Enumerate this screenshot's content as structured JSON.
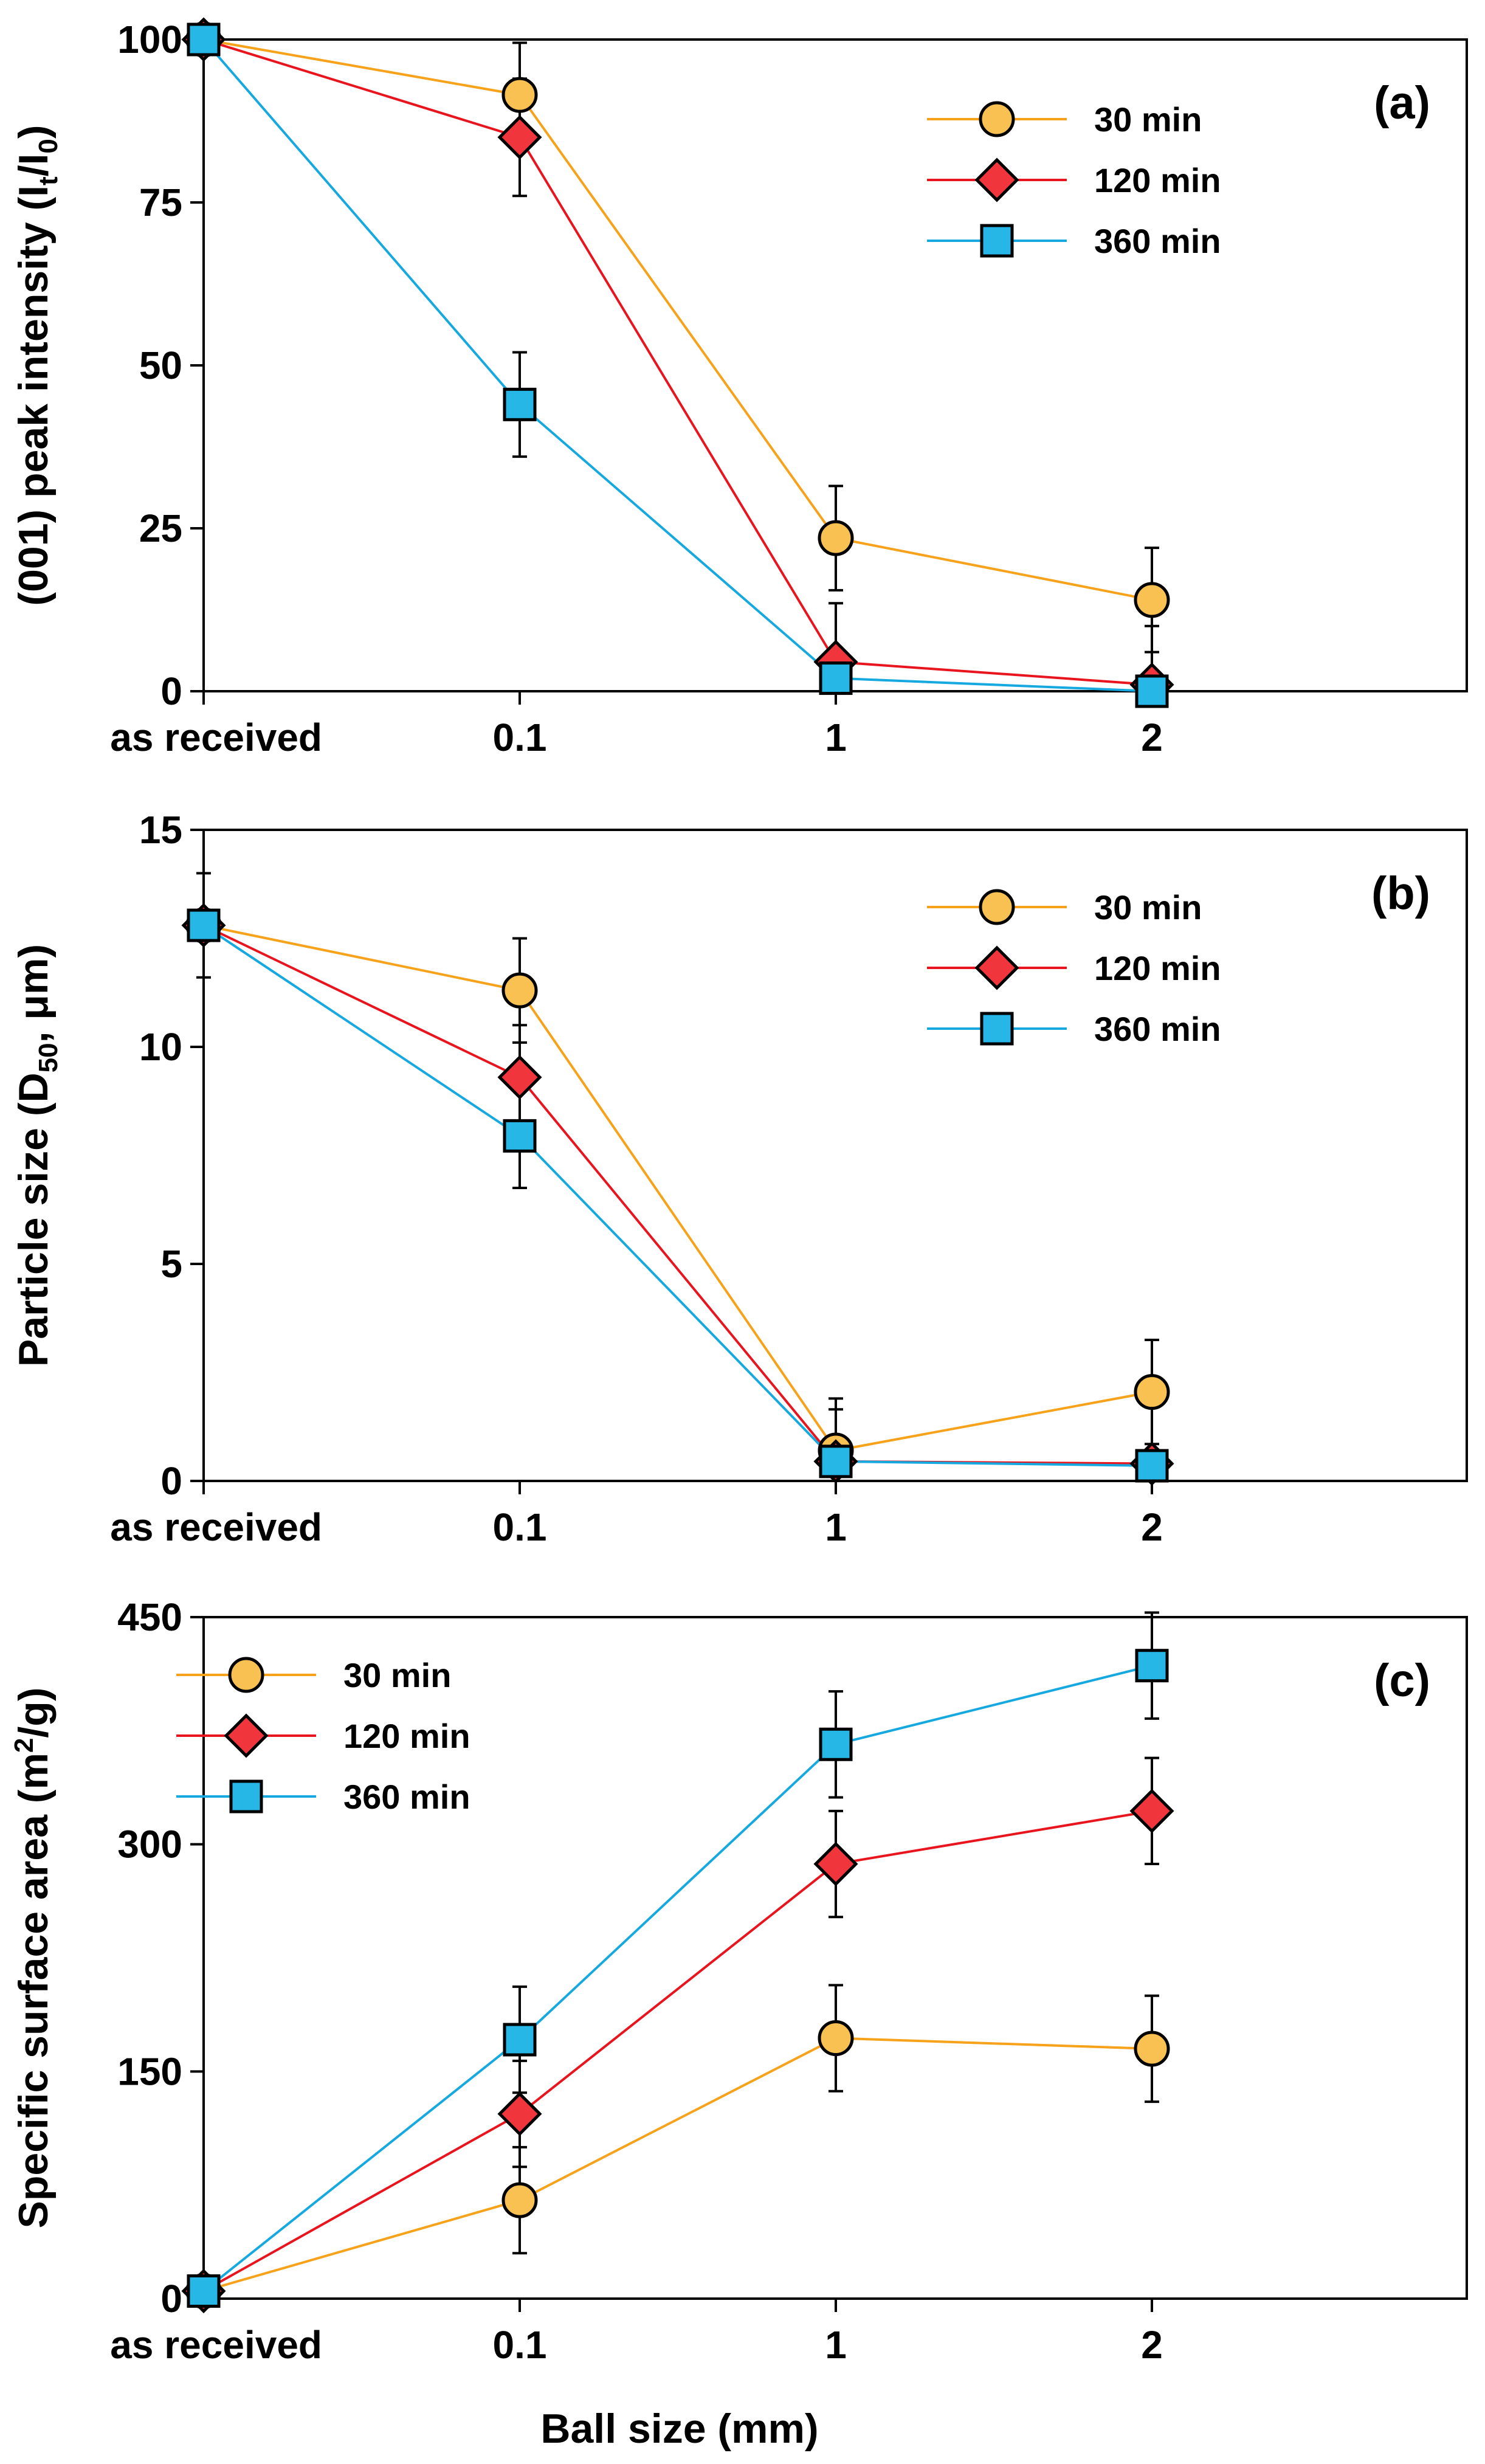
{
  "figure": {
    "xlabel": "Ball size (mm)",
    "colors": {
      "30 min": "#F9C152",
      "120 min": "#F0363C",
      "360 min": "#26B7E6"
    },
    "line_colors": {
      "30 min": "#F7A21B",
      "120 min": "#E8151E",
      "360 min": "#16A9DF"
    }
  },
  "chart_data": [
    {
      "type": "line",
      "panel_label": "(a)",
      "ylabel": "(001) peak intensity (I",
      "ylabel_sub1": "t",
      "ylabel_mid": "/I",
      "ylabel_sub2": "0",
      "ylabel_end": ")",
      "categories": [
        "as received",
        "0.1",
        "1",
        "2"
      ],
      "ylim": [
        0,
        100
      ],
      "yticks": [
        "0",
        "25",
        "50",
        "75",
        "100"
      ],
      "yticks_values": [
        0,
        25,
        50,
        75,
        100
      ],
      "legend_position": "top-right",
      "series": [
        {
          "name": "30 min",
          "marker": "circle",
          "values": [
            100,
            91.5,
            23.5,
            14
          ],
          "err": [
            0,
            8,
            8,
            8
          ]
        },
        {
          "name": "120 min",
          "marker": "diamond",
          "values": [
            100,
            85,
            4.5,
            1
          ],
          "err": [
            0,
            9,
            9,
            9
          ]
        },
        {
          "name": "360 min",
          "marker": "square",
          "values": [
            100,
            44,
            2,
            0
          ],
          "err": [
            0,
            8,
            0,
            0
          ]
        }
      ]
    },
    {
      "type": "line",
      "panel_label": "(b)",
      "ylabel": "Particle size (D",
      "ylabel_sub1": "50",
      "ylabel_mid": ", μm",
      "ylabel_sub2": "",
      "ylabel_end": ")",
      "categories": [
        "as received",
        "0.1",
        "1",
        "2"
      ],
      "ylim": [
        0,
        15
      ],
      "yticks": [
        "0",
        "5",
        "10",
        "15"
      ],
      "yticks_values": [
        0,
        5,
        10,
        15
      ],
      "legend_position": "top-right",
      "series": [
        {
          "name": "30 min",
          "marker": "circle",
          "values": [
            12.8,
            11.3,
            0.7,
            2.05
          ],
          "err": [
            1.2,
            1.2,
            1.2,
            1.2
          ]
        },
        {
          "name": "120 min",
          "marker": "diamond",
          "values": [
            12.8,
            9.3,
            0.45,
            0.4
          ],
          "err": [
            0,
            1.2,
            1.2,
            0
          ]
        },
        {
          "name": "360 min",
          "marker": "square",
          "values": [
            12.8,
            7.95,
            0.45,
            0.35
          ],
          "err": [
            0,
            1.2,
            0,
            0
          ]
        }
      ]
    },
    {
      "type": "line",
      "panel_label": "(c)",
      "ylabel": "Specific surface area (m",
      "ylabel_sup": "2",
      "ylabel_end": "/g)",
      "categories": [
        "as received",
        "0.1",
        "1",
        "2"
      ],
      "ylim": [
        0,
        450
      ],
      "yticks": [
        "0",
        "150",
        "300",
        "450"
      ],
      "yticks_values": [
        0,
        150,
        300,
        450
      ],
      "legend_position": "top-left",
      "series": [
        {
          "name": "30 min",
          "marker": "circle",
          "values": [
            5,
            65,
            172,
            165
          ],
          "err": [
            0,
            35,
            35,
            35
          ]
        },
        {
          "name": "120 min",
          "marker": "diamond",
          "values": [
            5,
            122,
            287,
            322
          ],
          "err": [
            0,
            35,
            35,
            35
          ]
        },
        {
          "name": "360 min",
          "marker": "square",
          "values": [
            5,
            171,
            366,
            418
          ],
          "err": [
            0,
            35,
            35,
            35
          ]
        }
      ]
    }
  ]
}
